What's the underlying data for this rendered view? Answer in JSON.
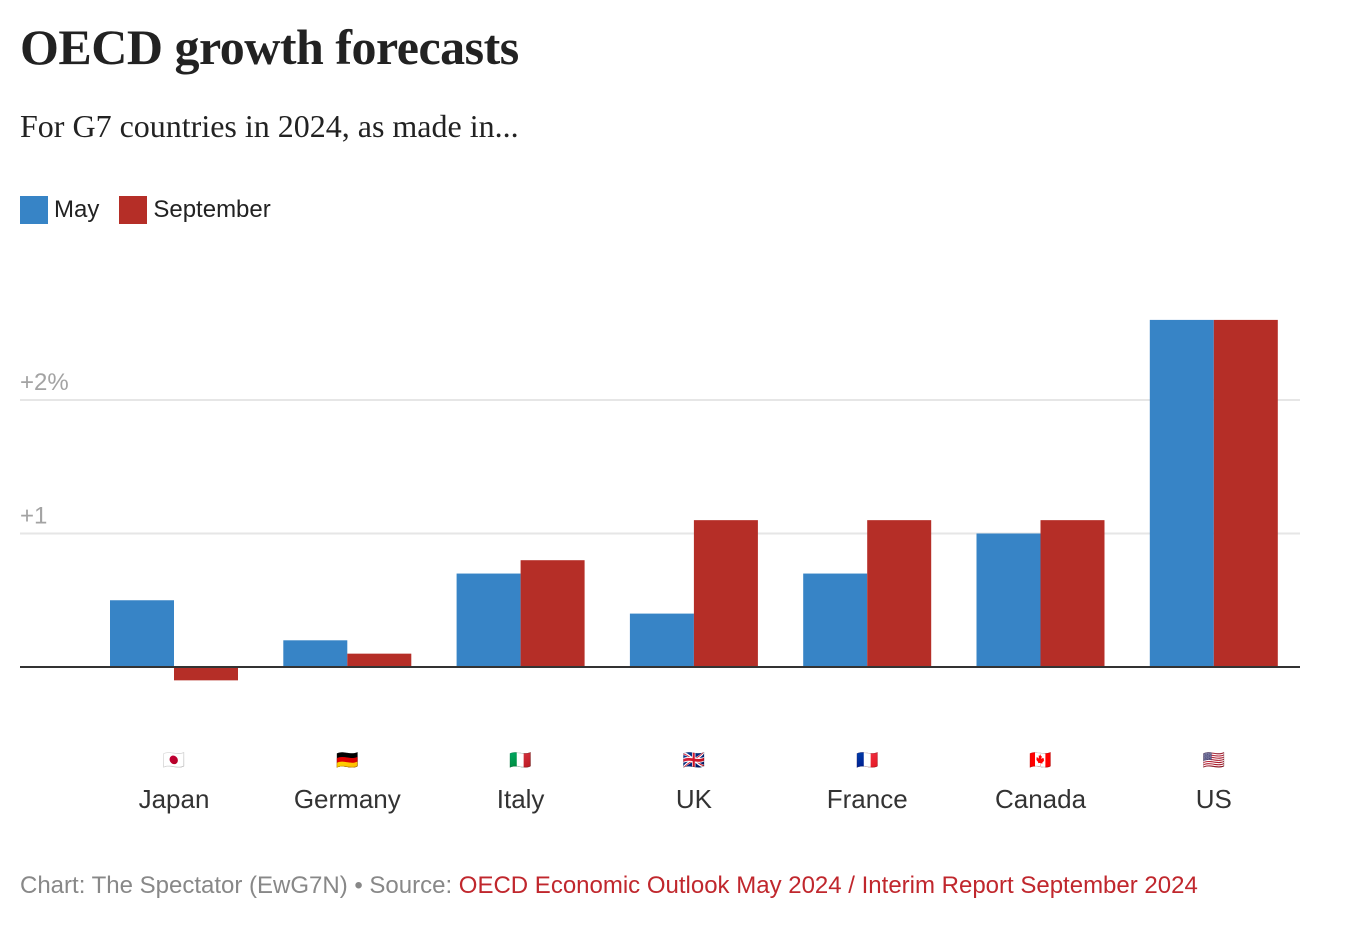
{
  "header": {
    "title": "OECD growth forecasts",
    "subtitle": "For G7 countries in 2024, as made in..."
  },
  "legend": [
    {
      "label": "May",
      "color": "#3784c6"
    },
    {
      "label": "September",
      "color": "#b52e27"
    }
  ],
  "footer": {
    "credit": "Chart: The Spectator (EwG7N) • Source: ",
    "source": "OECD Economic Outlook May 2024 / Interim Report September 2024"
  },
  "colors": {
    "gridline": "#e6e6e6",
    "baseline": "#333333",
    "tick_text": "#a3a3a3",
    "source_link": "#c0272d"
  },
  "chart_data": {
    "type": "bar",
    "title": "OECD growth forecasts",
    "subtitle": "For G7 countries in 2024, as made in...",
    "xlabel": "",
    "ylabel": "",
    "categories": [
      "Japan",
      "Germany",
      "Italy",
      "UK",
      "France",
      "Canada",
      "US"
    ],
    "category_flags": [
      "🇯🇵",
      "🇩🇪",
      "🇮🇹",
      "🇬🇧",
      "🇫🇷",
      "🇨🇦",
      "🇺🇸"
    ],
    "series": [
      {
        "name": "May",
        "color": "#3784c6",
        "values": [
          0.5,
          0.2,
          0.7,
          0.4,
          0.7,
          1.0,
          2.6
        ]
      },
      {
        "name": "September",
        "color": "#b52e27",
        "values": [
          -0.1,
          0.1,
          0.8,
          1.1,
          1.1,
          1.1,
          2.6
        ]
      }
    ],
    "yticks": [
      {
        "value": 1,
        "label": "+1"
      },
      {
        "value": 2,
        "label": "+2%"
      }
    ],
    "ylim": [
      -0.2,
      2.7
    ],
    "grid": true,
    "legend_position": "top-left",
    "unit": "%"
  }
}
